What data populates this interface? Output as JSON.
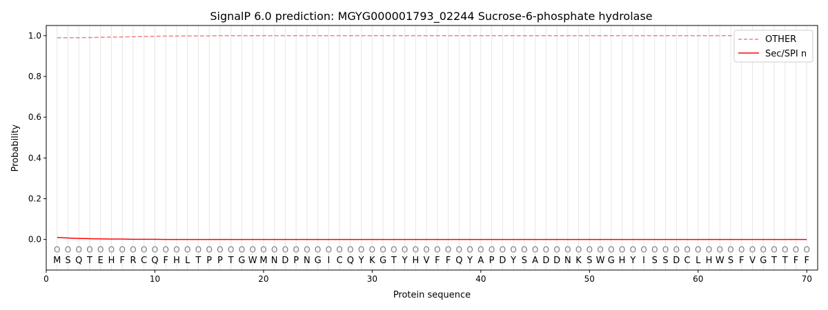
{
  "chart_data": {
    "type": "line",
    "title": "SignalP 6.0 prediction: MGYG000001793_02244 Sucrose-6-phosphate hydrolase",
    "xlabel": "Protein sequence",
    "ylabel": "Probability",
    "xlim": [
      0,
      71
    ],
    "ylim": [
      -0.15,
      1.05
    ],
    "xticks": [
      0,
      10,
      20,
      30,
      40,
      50,
      60,
      70
    ],
    "yticks": [
      "0.0",
      "0.2",
      "0.4",
      "0.6",
      "0.8",
      "1.0"
    ],
    "grid": "vertical lines at each residue",
    "legend_position": "top-right",
    "sequence": [
      "M",
      "S",
      "Q",
      "T",
      "E",
      "H",
      "F",
      "R",
      "C",
      "Q",
      "F",
      "H",
      "L",
      "T",
      "P",
      "P",
      "T",
      "G",
      "W",
      "M",
      "N",
      "D",
      "P",
      "N",
      "G",
      "I",
      "C",
      "Q",
      "Y",
      "K",
      "G",
      "T",
      "Y",
      "H",
      "V",
      "F",
      "F",
      "Q",
      "Y",
      "A",
      "P",
      "D",
      "Y",
      "S",
      "A",
      "D",
      "D",
      "N",
      "K",
      "S",
      "W",
      "G",
      "H",
      "Y",
      "I",
      "S",
      "S",
      "D",
      "C",
      "L",
      "H",
      "W",
      "S",
      "F",
      "V",
      "G",
      "T",
      "T",
      "F",
      "F"
    ],
    "residue_label": "O",
    "series": [
      {
        "name": "OTHER",
        "color": "#f08080",
        "style": "dashed",
        "values": [
          0.99,
          0.99,
          0.99,
          0.991,
          0.992,
          0.993,
          0.994,
          0.995,
          0.996,
          0.997,
          0.998,
          0.998,
          0.999,
          0.999,
          0.999,
          1,
          1,
          1,
          1,
          1,
          1,
          1,
          1,
          1,
          1,
          1,
          1,
          1,
          1,
          1,
          1,
          1,
          1,
          1,
          1,
          1,
          1,
          1,
          1,
          1,
          1,
          1,
          1,
          1,
          1,
          1,
          1,
          1,
          1,
          1,
          1,
          1,
          1,
          1,
          1,
          1,
          1,
          1,
          1,
          1,
          1,
          1,
          1,
          1,
          1,
          1,
          1,
          1,
          1,
          1
        ]
      },
      {
        "name": "Sec/SPI n",
        "color": "#ff0000",
        "style": "solid",
        "values": [
          0.01,
          0.007,
          0.005,
          0.004,
          0.003,
          0.002,
          0.002,
          0.001,
          0.001,
          0.001,
          0,
          0,
          0,
          0,
          0,
          0,
          0,
          0,
          0,
          0,
          0,
          0,
          0,
          0,
          0,
          0,
          0,
          0,
          0,
          0,
          0,
          0,
          0,
          0,
          0,
          0,
          0,
          0,
          0,
          0,
          0,
          0,
          0,
          0,
          0,
          0,
          0,
          0,
          0,
          0,
          0,
          0,
          0,
          0,
          0,
          0,
          0,
          0,
          0,
          0,
          0,
          0,
          0,
          0,
          0,
          0,
          0,
          0,
          0,
          0
        ]
      }
    ]
  }
}
